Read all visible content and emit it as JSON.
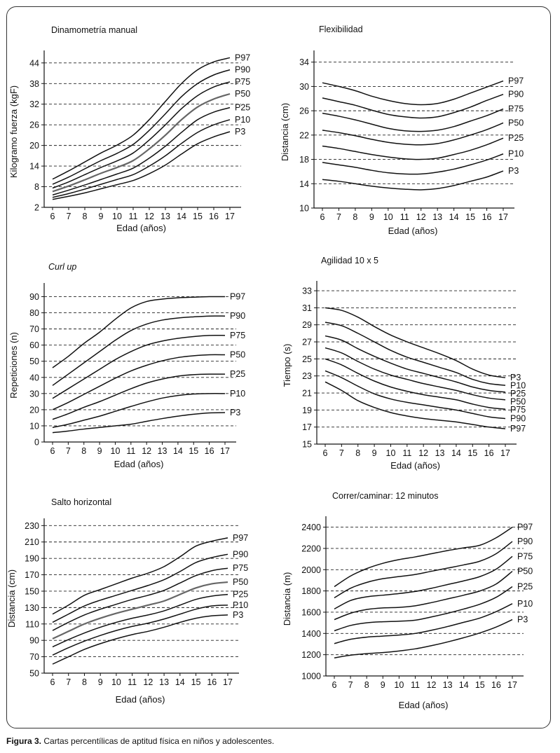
{
  "caption": {
    "label": "Figura 3.",
    "text": " Cartas percentílicas de aptitud física en niños y adolescentes."
  },
  "chart_data": [
    {
      "type": "line",
      "title": "Dinamometría manual",
      "title_italic": false,
      "xlabel": "Edad (años)",
      "ylabel": "Kilogramo fuerza (kgF)",
      "x": [
        6,
        7,
        8,
        9,
        10,
        11,
        12,
        13,
        14,
        15,
        16,
        17
      ],
      "y_ticks": [
        2,
        8,
        14,
        20,
        26,
        32,
        38,
        44
      ],
      "ylim": [
        2,
        46
      ],
      "grid": "dashed horizontal",
      "series": [
        {
          "name": "P97",
          "values": [
            10.2,
            12.6,
            15.2,
            17.8,
            20.1,
            23.0,
            27.5,
            32.8,
            38.0,
            42.0,
            44.3,
            45.5
          ],
          "color": "#111111"
        },
        {
          "name": "P90",
          "values": [
            8.7,
            10.8,
            13.2,
            15.6,
            17.7,
            20.3,
            24.4,
            29.2,
            34.2,
            38.0,
            40.5,
            42.0
          ],
          "color": "#111111"
        },
        {
          "name": "P75",
          "values": [
            7.6,
            9.4,
            11.5,
            13.6,
            15.5,
            17.8,
            21.6,
            26.0,
            30.7,
            34.5,
            37.0,
            38.5
          ],
          "color": "#111111"
        },
        {
          "name": "P50",
          "values": [
            6.6,
            8.2,
            10.0,
            11.9,
            13.6,
            15.6,
            19.0,
            23.0,
            27.5,
            31.2,
            33.5,
            35.0
          ],
          "color": "#666666"
        },
        {
          "name": "P25",
          "values": [
            5.6,
            7.0,
            8.5,
            10.1,
            11.7,
            13.4,
            16.3,
            19.8,
            23.8,
            27.5,
            29.7,
            31.0
          ],
          "color": "#111111"
        },
        {
          "name": "P10",
          "values": [
            4.9,
            6.0,
            7.3,
            8.7,
            10.1,
            11.5,
            14.0,
            17.0,
            20.6,
            23.8,
            26.0,
            27.5
          ],
          "color": "#111111"
        },
        {
          "name": "P3",
          "values": [
            4.3,
            5.2,
            6.2,
            7.4,
            8.6,
            9.8,
            11.8,
            14.3,
            17.5,
            20.5,
            22.5,
            24.0
          ],
          "color": "#111111"
        }
      ]
    },
    {
      "type": "line",
      "title": "Flexibilidad",
      "title_italic": false,
      "xlabel": "Edad (años)",
      "ylabel": "Distancia (cm)",
      "x": [
        6,
        7,
        8,
        9,
        10,
        11,
        12,
        13,
        14,
        15,
        16,
        17
      ],
      "y_ticks": [
        10,
        14,
        18,
        22,
        26,
        30,
        34
      ],
      "ylim": [
        10,
        35
      ],
      "grid": "dashed horizontal",
      "series": [
        {
          "name": "P97",
          "values": [
            30.6,
            30.0,
            29.3,
            28.4,
            27.7,
            27.2,
            27.0,
            27.2,
            27.9,
            28.9,
            29.9,
            30.9
          ],
          "color": "#111111"
        },
        {
          "name": "P90",
          "values": [
            28.1,
            27.5,
            26.9,
            26.1,
            25.4,
            25.0,
            24.8,
            25.0,
            25.7,
            26.6,
            27.7,
            28.7
          ],
          "color": "#111111"
        },
        {
          "name": "P75",
          "values": [
            25.6,
            25.1,
            24.5,
            23.8,
            23.1,
            22.7,
            22.6,
            22.8,
            23.4,
            24.3,
            25.2,
            26.3
          ],
          "color": "#111111"
        },
        {
          "name": "P50",
          "values": [
            22.8,
            22.4,
            21.9,
            21.3,
            20.8,
            20.5,
            20.4,
            20.6,
            21.2,
            22.0,
            22.9,
            24.0
          ],
          "color": "#111111"
        },
        {
          "name": "P25",
          "values": [
            20.2,
            19.8,
            19.3,
            18.8,
            18.4,
            18.1,
            18.0,
            18.2,
            18.8,
            19.5,
            20.4,
            21.5
          ],
          "color": "#111111"
        },
        {
          "name": "P10",
          "values": [
            17.5,
            17.1,
            16.7,
            16.2,
            15.8,
            15.6,
            15.6,
            15.9,
            16.4,
            17.1,
            17.9,
            18.9
          ],
          "color": "#111111"
        },
        {
          "name": "P3",
          "values": [
            14.7,
            14.4,
            14.0,
            13.6,
            13.3,
            13.1,
            13.0,
            13.2,
            13.7,
            14.4,
            15.1,
            16.1
          ],
          "color": "#111111"
        }
      ]
    },
    {
      "type": "line",
      "title": "Curl up",
      "title_italic": true,
      "xlabel": "Edad (años)",
      "ylabel": "Repeticiones (n)",
      "x": [
        6,
        7,
        8,
        9,
        10,
        11,
        12,
        13,
        14,
        15,
        16,
        17
      ],
      "y_ticks": [
        0,
        10,
        20,
        30,
        40,
        50,
        60,
        70,
        80,
        90
      ],
      "ylim": [
        0,
        95
      ],
      "grid": "dashed horizontal",
      "series": [
        {
          "name": "P97",
          "values": [
            46,
            53,
            61,
            68,
            76,
            83,
            87,
            88.5,
            89.3,
            89.7,
            90,
            90
          ],
          "color": "#111111"
        },
        {
          "name": "P90",
          "values": [
            35,
            42,
            49,
            56,
            63,
            69,
            73,
            75.5,
            76.8,
            77.5,
            78,
            78
          ],
          "color": "#111111"
        },
        {
          "name": "P75",
          "values": [
            27,
            33,
            39,
            45,
            51,
            56,
            60,
            62.5,
            64.2,
            65.3,
            66,
            66
          ],
          "color": "#111111"
        },
        {
          "name": "P50",
          "values": [
            20,
            24.5,
            29.5,
            34.5,
            39.5,
            44,
            47.5,
            50.3,
            52.3,
            53.4,
            54,
            54
          ],
          "color": "#111111"
        },
        {
          "name": "P25",
          "values": [
            14,
            17.5,
            21.5,
            25,
            29,
            33,
            36.5,
            39,
            40.8,
            41.7,
            42,
            42
          ],
          "color": "#111111"
        },
        {
          "name": "P10",
          "values": [
            9,
            11,
            13.5,
            16,
            19,
            22,
            24.8,
            27.2,
            28.8,
            29.7,
            30,
            30
          ],
          "color": "#111111"
        },
        {
          "name": "P3",
          "values": [
            5.8,
            6.8,
            8,
            9,
            10,
            11,
            12.8,
            14.5,
            16,
            17.2,
            18,
            18.2
          ],
          "color": "#111111"
        }
      ]
    },
    {
      "type": "line",
      "title": "Agilidad 10 x 5",
      "title_italic": false,
      "xlabel": "Edad (años)",
      "ylabel": "Tiempo (s)",
      "x": [
        6,
        7,
        8,
        9,
        10,
        11,
        12,
        13,
        14,
        15,
        16,
        17
      ],
      "y_ticks": [
        15,
        17,
        19,
        21,
        23,
        25,
        27,
        29,
        31,
        33
      ],
      "ylim": [
        15,
        33.5
      ],
      "grid": "dashed horizontal",
      "series": [
        {
          "name": "P3",
          "values": [
            31.0,
            30.7,
            29.9,
            28.8,
            27.8,
            27.0,
            26.3,
            25.6,
            24.8,
            23.8,
            23.1,
            22.8
          ],
          "color": "#111111"
        },
        {
          "name": "P10",
          "values": [
            29.3,
            28.9,
            28.0,
            27.0,
            26.0,
            25.2,
            24.6,
            24.0,
            23.4,
            22.6,
            22.1,
            21.9
          ],
          "color": "#111111"
        },
        {
          "name": "P25",
          "values": [
            27.7,
            27.2,
            26.2,
            25.3,
            24.5,
            23.8,
            23.3,
            22.8,
            22.3,
            21.7,
            21.3,
            21.1
          ],
          "color": "#111111"
        },
        {
          "name": "P50",
          "values": [
            26.3,
            25.7,
            24.7,
            23.8,
            23.1,
            22.6,
            22.1,
            21.7,
            21.3,
            20.8,
            20.4,
            20.2
          ],
          "color": "#111111"
        },
        {
          "name": "P75",
          "values": [
            25.0,
            24.3,
            23.3,
            22.4,
            21.7,
            21.2,
            20.8,
            20.5,
            20.2,
            19.7,
            19.3,
            19.1
          ],
          "color": "#111111"
        },
        {
          "name": "P90",
          "values": [
            23.6,
            22.8,
            21.8,
            20.9,
            20.3,
            19.9,
            19.6,
            19.3,
            19.0,
            18.6,
            18.2,
            18.0
          ],
          "color": "#111111"
        },
        {
          "name": "P97",
          "values": [
            22.3,
            21.3,
            20.1,
            19.3,
            18.7,
            18.3,
            18.0,
            17.8,
            17.6,
            17.3,
            17.0,
            16.8
          ],
          "color": "#111111"
        }
      ]
    },
    {
      "type": "line",
      "title": "Salto horizontal",
      "title_italic": false,
      "xlabel": "Edad (años)",
      "ylabel": "Distancia (cm)",
      "x": [
        6,
        7,
        8,
        9,
        10,
        11,
        12,
        13,
        14,
        15,
        16,
        17
      ],
      "y_ticks": [
        50,
        70,
        90,
        110,
        130,
        150,
        170,
        190,
        210,
        230
      ],
      "ylim": [
        50,
        232
      ],
      "grid": "dashed horizontal",
      "series": [
        {
          "name": "P97",
          "values": [
            122,
            133,
            145,
            152,
            159,
            166,
            172,
            180,
            192,
            205,
            211,
            215
          ],
          "color": "#111111"
        },
        {
          "name": "P90",
          "values": [
            112,
            122,
            132,
            139,
            145,
            151,
            157,
            164,
            174,
            185,
            191,
            195
          ],
          "color": "#111111"
        },
        {
          "name": "P75",
          "values": [
            102,
            112,
            121,
            128,
            134,
            140,
            145,
            151,
            160,
            169,
            175,
            178
          ],
          "color": "#111111"
        },
        {
          "name": "P50",
          "values": [
            92,
            101,
            110,
            117,
            123,
            128,
            133,
            138,
            146,
            154,
            159,
            161
          ],
          "color": "#666666"
        },
        {
          "name": "P25",
          "values": [
            82,
            91,
            99,
            106,
            112,
            117,
            121,
            126,
            133,
            140,
            144,
            146
          ],
          "color": "#111111"
        },
        {
          "name": "P10",
          "values": [
            72,
            81,
            89,
            96,
            102,
            107,
            111,
            116,
            122,
            128,
            132,
            133
          ],
          "color": "#111111"
        },
        {
          "name": "P3",
          "values": [
            61,
            70,
            79,
            86,
            92,
            97,
            101,
            106,
            112,
            117,
            120,
            121
          ],
          "color": "#111111"
        }
      ]
    },
    {
      "type": "line",
      "title": "Correr/caminar: 12 minutos",
      "title_italic": false,
      "xlabel": "Edad (años)",
      "ylabel": "Distancia (m)",
      "x": [
        6,
        7,
        8,
        9,
        10,
        11,
        12,
        13,
        14,
        15,
        16,
        17
      ],
      "y_ticks": [
        1000,
        1200,
        1400,
        1600,
        1800,
        2000,
        2200,
        2400
      ],
      "ylim": [
        1000,
        2450
      ],
      "grid": "dashed horizontal",
      "series": [
        {
          "name": "P97",
          "values": [
            1840,
            1940,
            2010,
            2060,
            2095,
            2120,
            2150,
            2180,
            2205,
            2230,
            2300,
            2400
          ],
          "color": "#111111"
        },
        {
          "name": "P90",
          "values": [
            1735,
            1825,
            1880,
            1915,
            1935,
            1955,
            1985,
            2015,
            2045,
            2080,
            2150,
            2265
          ],
          "color": "#111111"
        },
        {
          "name": "P75",
          "values": [
            1630,
            1710,
            1745,
            1760,
            1775,
            1795,
            1825,
            1860,
            1895,
            1935,
            2005,
            2125
          ],
          "color": "#111111"
        },
        {
          "name": "P50",
          "values": [
            1530,
            1590,
            1625,
            1640,
            1645,
            1660,
            1690,
            1725,
            1760,
            1800,
            1865,
            1985
          ],
          "color": "#111111"
        },
        {
          "name": "P25",
          "values": [
            1425,
            1475,
            1500,
            1510,
            1515,
            1525,
            1555,
            1590,
            1630,
            1675,
            1740,
            1840
          ],
          "color": "#111111"
        },
        {
          "name": "P10",
          "values": [
            1305,
            1345,
            1365,
            1375,
            1385,
            1400,
            1430,
            1465,
            1505,
            1545,
            1605,
            1680
          ],
          "color": "#111111"
        },
        {
          "name": "P3",
          "values": [
            1170,
            1195,
            1210,
            1220,
            1235,
            1255,
            1285,
            1320,
            1360,
            1405,
            1460,
            1530
          ],
          "color": "#111111"
        }
      ]
    }
  ]
}
